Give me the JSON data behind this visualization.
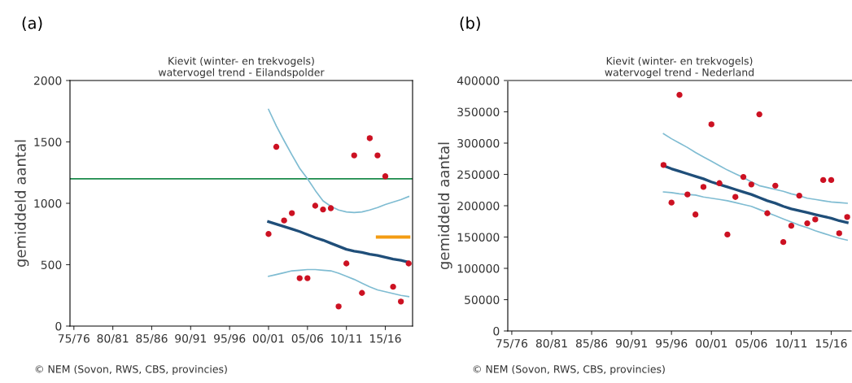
{
  "chart_data": [
    {
      "type": "scatter",
      "title": "Kievit (winter- en trekvogels)\nwatervogel trend - Eilandspolder",
      "ylabel": "gemiddeld aantal",
      "annotations": [
        "(a)",
        "© NEM (Sovon, RWS, CBS, provincies)"
      ],
      "categories": [
        "75/76",
        null,
        null,
        null,
        null,
        "80/81",
        null,
        null,
        null,
        null,
        "85/86",
        null,
        null,
        null,
        null,
        "90/91",
        null,
        null,
        null,
        null,
        "95/96",
        null,
        null,
        null,
        null,
        "00/01",
        null,
        null,
        null,
        null,
        "05/06",
        null,
        null,
        null,
        null,
        "10/11",
        null,
        null,
        null,
        null,
        "15/16",
        null,
        null,
        null
      ],
      "ylim": [
        0,
        2000
      ],
      "yticks": [
        0,
        500,
        1000,
        1500,
        2000
      ],
      "ref_lines": [
        {
          "axis": "y",
          "value": 1200,
          "label": null,
          "color": "#1a8a4a"
        }
      ],
      "series": [
        {
          "type": "line",
          "color": "#7fbcd2",
          "values": [
            null,
            null,
            null,
            null,
            null,
            null,
            null,
            null,
            null,
            null,
            null,
            null,
            null,
            null,
            null,
            null,
            null,
            null,
            null,
            null,
            null,
            null,
            null,
            null,
            null,
            1765,
            1630,
            1510,
            1395,
            1285,
            1200,
            1105,
            1020,
            975,
            945,
            930,
            925,
            930,
            945,
            965,
            990,
            1010,
            1030,
            1055
          ]
        },
        {
          "type": "line",
          "color": "#7fbcd2",
          "values": [
            null,
            null,
            null,
            null,
            null,
            null,
            null,
            null,
            null,
            null,
            null,
            null,
            null,
            null,
            null,
            null,
            null,
            null,
            null,
            null,
            null,
            null,
            null,
            null,
            null,
            405,
            420,
            435,
            450,
            455,
            460,
            460,
            455,
            450,
            430,
            405,
            380,
            350,
            320,
            295,
            280,
            265,
            250,
            240
          ]
        },
        {
          "type": "line",
          "color": "#1f4e79",
          "values": [
            null,
            null,
            null,
            null,
            null,
            null,
            null,
            null,
            null,
            null,
            null,
            null,
            null,
            null,
            null,
            null,
            null,
            null,
            null,
            null,
            null,
            null,
            null,
            null,
            null,
            850,
            830,
            810,
            790,
            770,
            745,
            720,
            700,
            675,
            650,
            625,
            610,
            600,
            585,
            575,
            560,
            545,
            535,
            520
          ]
        },
        {
          "type": "line",
          "color": "#f39c12",
          "values": [
            null,
            null,
            null,
            null,
            null,
            null,
            null,
            null,
            null,
            null,
            null,
            null,
            null,
            null,
            null,
            null,
            null,
            null,
            null,
            null,
            null,
            null,
            null,
            null,
            null,
            null,
            null,
            null,
            null,
            null,
            null,
            null,
            null,
            null,
            null,
            null,
            null,
            null,
            null,
            725,
            725,
            725,
            725,
            725
          ]
        },
        {
          "color": "#cc1122",
          "values": [
            null,
            null,
            null,
            null,
            null,
            null,
            null,
            null,
            null,
            null,
            null,
            null,
            null,
            null,
            null,
            null,
            null,
            null,
            null,
            null,
            null,
            null,
            null,
            null,
            null,
            750,
            1460,
            860,
            920,
            390,
            390,
            980,
            950,
            960,
            160,
            510,
            1390,
            270,
            1530,
            1390,
            1220,
            320,
            200,
            510
          ]
        }
      ]
    },
    {
      "type": "scatter",
      "title": "Kievit (winter- en trekvogels)\nwatervogel trend - Nederland",
      "ylabel": "gemiddeld aantal",
      "annotations": [
        "(b)",
        "© NEM (Sovon, RWS, CBS, provincies)"
      ],
      "categories": [
        "75/76",
        null,
        null,
        null,
        null,
        "80/81",
        null,
        null,
        null,
        null,
        "85/86",
        null,
        null,
        null,
        null,
        "90/91",
        null,
        null,
        null,
        null,
        "95/96",
        null,
        null,
        null,
        null,
        "00/01",
        null,
        null,
        null,
        null,
        "05/06",
        null,
        null,
        null,
        null,
        "10/11",
        null,
        null,
        null,
        null,
        "15/16",
        null,
        null
      ],
      "ylim": [
        0,
        400000
      ],
      "yticks": [
        0,
        50000,
        100000,
        150000,
        200000,
        250000,
        300000,
        350000,
        400000
      ],
      "series": [
        {
          "type": "line",
          "color": "#7fbcd2",
          "values": [
            null,
            null,
            null,
            null,
            null,
            null,
            null,
            null,
            null,
            null,
            null,
            null,
            null,
            null,
            null,
            null,
            null,
            null,
            null,
            315000,
            307000,
            300000,
            293000,
            285000,
            278000,
            271000,
            264000,
            257000,
            251000,
            245000,
            238000,
            232000,
            229000,
            226000,
            223000,
            219000,
            216000,
            212000,
            210000,
            208000,
            206000,
            205000,
            204000
          ]
        },
        {
          "type": "line",
          "color": "#7fbcd2",
          "values": [
            null,
            null,
            null,
            null,
            null,
            null,
            null,
            null,
            null,
            null,
            null,
            null,
            null,
            null,
            null,
            null,
            null,
            null,
            null,
            222000,
            221000,
            219000,
            218000,
            217000,
            214000,
            212000,
            210000,
            208000,
            205000,
            202000,
            199000,
            194000,
            189000,
            184000,
            179000,
            174000,
            169000,
            165000,
            160000,
            156000,
            152000,
            148000,
            145000
          ]
        },
        {
          "type": "line",
          "color": "#1f4e79",
          "values": [
            null,
            null,
            null,
            null,
            null,
            null,
            null,
            null,
            null,
            null,
            null,
            null,
            null,
            null,
            null,
            null,
            null,
            null,
            null,
            264000,
            259000,
            255000,
            251000,
            247000,
            243000,
            238000,
            234000,
            230000,
            226000,
            222000,
            218000,
            213000,
            208000,
            204000,
            199000,
            195000,
            192000,
            189000,
            186000,
            183000,
            180000,
            176000,
            173000
          ]
        },
        {
          "color": "#cc1122",
          "values": [
            null,
            null,
            null,
            null,
            null,
            null,
            null,
            null,
            null,
            null,
            null,
            null,
            null,
            null,
            null,
            null,
            null,
            null,
            null,
            265000,
            205000,
            377000,
            218000,
            186000,
            230000,
            330000,
            236000,
            154000,
            214000,
            246000,
            234000,
            346000,
            188000,
            232000,
            142000,
            168000,
            216000,
            172000,
            178000,
            241000,
            241000,
            156000,
            182000
          ]
        }
      ]
    }
  ]
}
